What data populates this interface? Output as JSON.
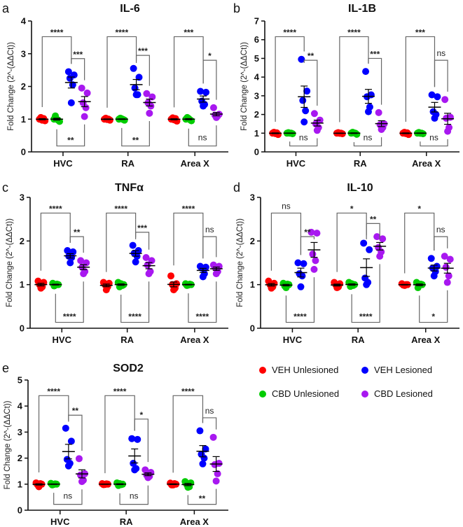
{
  "legend": [
    {
      "label": "VEH Unlesioned",
      "color": "#ff0000"
    },
    {
      "label": "VEH Lesioned",
      "color": "#0000ff"
    },
    {
      "label": "CBD Unlesioned",
      "color": "#00cc00"
    },
    {
      "label": "CBD Lesioned",
      "color": "#a818f0"
    }
  ],
  "chart_data": [
    {
      "panel": "a",
      "type": "scatter",
      "title": "IL-6",
      "ylabel": "Fold Change (2^-(ΔΔCt))",
      "ylim": [
        0,
        4
      ],
      "yticks": [
        0,
        1,
        2,
        3,
        4
      ],
      "categories": [
        "HVC",
        "RA",
        "Area X"
      ],
      "series": [
        {
          "name": "VEH Unlesioned",
          "values": [
            [
              1.0,
              0.95,
              1.05,
              1.02,
              0.97
            ],
            [
              1.0,
              0.97,
              1.03,
              1.0,
              0.99
            ],
            [
              1.0,
              0.94,
              1.04,
              1.02,
              0.98
            ]
          ]
        },
        {
          "name": "CBD Unlesioned",
          "values": [
            [
              1.0,
              0.93,
              1.1,
              0.97,
              1.0
            ],
            [
              1.0,
              0.97,
              1.03,
              0.99,
              1.01
            ],
            [
              1.0,
              0.95,
              1.05,
              0.98,
              1.02
            ]
          ]
        },
        {
          "name": "VEH Lesioned",
          "values": [
            [
              2.45,
              2.35,
              2.25,
              2.05,
              1.5
            ],
            [
              2.55,
              2.28,
              1.95,
              1.75,
              1.75
            ],
            [
              1.85,
              1.82,
              1.55,
              1.45,
              1.4
            ]
          ]
        },
        {
          "name": "CBD Lesioned",
          "values": [
            [
              1.95,
              1.8,
              1.5,
              1.35,
              1.08
            ],
            [
              1.78,
              1.68,
              1.5,
              1.4,
              1.18
            ],
            [
              1.35,
              1.15,
              1.12,
              1.1,
              1.05
            ]
          ]
        }
      ],
      "significance": [
        {
          "top": "****",
          "mid": "***",
          "bottom": "**"
        },
        {
          "top": "****",
          "mid": "***",
          "bottom": "**"
        },
        {
          "top": "***",
          "mid": "*",
          "bottom": "ns"
        }
      ]
    },
    {
      "panel": "b",
      "type": "scatter",
      "title": "IL-1B",
      "ylabel": "Fold Change (2^-(ΔΔCt))",
      "ylim": [
        0,
        7
      ],
      "yticks": [
        0,
        1,
        2,
        3,
        4,
        5,
        6,
        7
      ],
      "categories": [
        "HVC",
        "RA",
        "Area X"
      ],
      "series": [
        {
          "name": "VEH Unlesioned",
          "values": [
            [
              1.0,
              0.93,
              1.05,
              1.02,
              0.98
            ],
            [
              1.0,
              0.97,
              1.03,
              1.0,
              0.99
            ],
            [
              1.0,
              0.93,
              1.05,
              1.02,
              0.98
            ]
          ]
        },
        {
          "name": "CBD Unlesioned",
          "values": [
            [
              1.0,
              0.97,
              1.03,
              1.0,
              1.0
            ],
            [
              1.0,
              0.94,
              1.05,
              1.0,
              1.01
            ],
            [
              1.0,
              0.97,
              1.04,
              1.0,
              0.99
            ]
          ]
        },
        {
          "name": "VEH Lesioned",
          "values": [
            [
              4.95,
              3.25,
              2.75,
              2.2,
              1.6
            ],
            [
              4.3,
              3.05,
              2.95,
              2.4,
              2.15
            ],
            [
              3.05,
              2.95,
              2.15,
              2.0,
              1.8
            ]
          ]
        },
        {
          "name": "CBD Lesioned",
          "values": [
            [
              2.05,
              1.7,
              1.5,
              1.3,
              1.15
            ],
            [
              2.1,
              1.5,
              1.45,
              1.3,
              1.2
            ],
            [
              2.8,
              1.85,
              1.8,
              1.3,
              1.1
            ]
          ]
        }
      ],
      "significance": [
        {
          "top": "****",
          "mid": "**",
          "bottom": "ns"
        },
        {
          "top": "****",
          "mid": "***",
          "bottom": "ns"
        },
        {
          "top": "***",
          "mid": "ns",
          "bottom": "ns"
        }
      ]
    },
    {
      "panel": "c",
      "type": "scatter",
      "title": "TNFα",
      "ylabel": "Fold Change (2^-(ΔΔCt))",
      "ylim": [
        0,
        3
      ],
      "yticks": [
        0,
        1,
        2,
        3
      ],
      "categories": [
        "HVC",
        "RA",
        "Area X"
      ],
      "series": [
        {
          "name": "VEH Unlesioned",
          "values": [
            [
              1.08,
              1.05,
              1.0,
              0.95,
              0.92
            ],
            [
              1.05,
              1.03,
              1.0,
              0.95,
              0.88
            ],
            [
              1.2,
              1.02,
              1.0,
              0.92,
              0.88
            ]
          ]
        },
        {
          "name": "CBD Unlesioned",
          "values": [
            [
              1.03,
              1.0,
              0.97,
              1.01,
              0.99
            ],
            [
              1.05,
              1.0,
              0.95,
              0.98,
              1.02
            ],
            [
              1.02,
              1.0,
              0.98,
              1.01,
              0.99
            ]
          ]
        },
        {
          "name": "VEH Lesioned",
          "values": [
            [
              1.78,
              1.75,
              1.65,
              1.62,
              1.5
            ],
            [
              1.9,
              1.78,
              1.72,
              1.65,
              1.52
            ],
            [
              1.42,
              1.4,
              1.38,
              1.25,
              1.18
            ]
          ]
        },
        {
          "name": "CBD Lesioned",
          "values": [
            [
              1.55,
              1.5,
              1.4,
              1.3,
              1.25
            ],
            [
              1.62,
              1.55,
              1.45,
              1.3,
              1.25
            ],
            [
              1.45,
              1.42,
              1.4,
              1.3,
              1.25
            ]
          ]
        }
      ],
      "significance": [
        {
          "top": "****",
          "mid": "**",
          "bottom": "****"
        },
        {
          "top": "****",
          "mid": "***",
          "bottom": "****"
        },
        {
          "top": "****",
          "mid": "ns",
          "bottom": "****"
        }
      ]
    },
    {
      "panel": "d",
      "type": "scatter",
      "title": "IL-10",
      "ylabel": "Fold Change (2^-(ΔΔCt))",
      "ylim": [
        0,
        3
      ],
      "yticks": [
        0,
        1,
        2,
        3
      ],
      "categories": [
        "HVC",
        "RA",
        "Area X"
      ],
      "series": [
        {
          "name": "VEH Unlesioned",
          "values": [
            [
              1.08,
              1.03,
              1.0,
              0.95,
              0.92
            ],
            [
              1.05,
              1.02,
              1.0,
              0.95,
              0.93
            ],
            [
              1.02,
              1.0,
              0.99,
              1.0,
              0.98
            ]
          ]
        },
        {
          "name": "CBD Unlesioned",
          "values": [
            [
              1.03,
              1.0,
              0.97,
              1.01,
              0.93
            ],
            [
              1.05,
              1.0,
              0.96,
              0.98,
              1.02
            ],
            [
              1.05,
              1.0,
              0.93,
              1.01,
              0.99
            ]
          ]
        },
        {
          "name": "VEH Lesioned",
          "values": [
            [
              1.5,
              1.48,
              1.25,
              1.2,
              0.95
            ],
            [
              1.95,
              1.8,
              1.15,
              1.05,
              1.0
            ],
            [
              1.6,
              1.42,
              1.38,
              1.3,
              1.2
            ]
          ]
        },
        {
          "name": "CBD Lesioned",
          "values": [
            [
              2.2,
              2.18,
              1.7,
              1.55,
              1.35
            ],
            [
              2.1,
              2.05,
              1.85,
              1.75,
              1.65
            ],
            [
              1.65,
              1.58,
              1.4,
              1.2,
              1.05
            ]
          ]
        }
      ],
      "significance": [
        {
          "top": "ns",
          "mid": "**",
          "bottom": "****"
        },
        {
          "top": "*",
          "mid": "**",
          "bottom": "****"
        },
        {
          "top": "*",
          "mid": "ns",
          "bottom": "*"
        }
      ]
    },
    {
      "panel": "e",
      "type": "scatter",
      "title": "SOD2",
      "ylabel": "Fold Change (2^-(ΔΔCt))",
      "ylim": [
        0,
        5
      ],
      "yticks": [
        0,
        1,
        2,
        3,
        4,
        5
      ],
      "categories": [
        "HVC",
        "RA",
        "Area X"
      ],
      "series": [
        {
          "name": "VEH Unlesioned",
          "values": [
            [
              1.05,
              1.0,
              0.98,
              1.02,
              0.9
            ],
            [
              1.02,
              1.0,
              0.98,
              1.01,
              0.99
            ],
            [
              1.04,
              1.0,
              0.97,
              1.02,
              0.97
            ]
          ]
        },
        {
          "name": "CBD Unlesioned",
          "values": [
            [
              1.03,
              1.0,
              0.97,
              1.01,
              0.99
            ],
            [
              1.05,
              1.0,
              0.95,
              0.98,
              1.02
            ],
            [
              1.1,
              1.05,
              1.0,
              0.9,
              0.88
            ]
          ]
        },
        {
          "name": "VEH Lesioned",
          "values": [
            [
              3.15,
              2.65,
              1.95,
              1.8,
              1.7
            ],
            [
              2.75,
              2.72,
              1.8,
              1.6,
              1.55
            ],
            [
              3.05,
              2.35,
              2.15,
              2.0,
              1.78
            ]
          ]
        },
        {
          "name": "CBD Lesioned",
          "values": [
            [
              1.98,
              1.4,
              1.35,
              1.15,
              1.1
            ],
            [
              1.55,
              1.45,
              1.35,
              1.3,
              1.25
            ],
            [
              2.8,
              1.8,
              1.75,
              1.4,
              1.12
            ]
          ]
        }
      ],
      "significance": [
        {
          "top": "****",
          "mid": "**",
          "bottom": "ns"
        },
        {
          "top": "****",
          "mid": "*",
          "bottom": "ns"
        },
        {
          "top": "****",
          "mid": "ns",
          "bottom": "**"
        }
      ]
    }
  ]
}
